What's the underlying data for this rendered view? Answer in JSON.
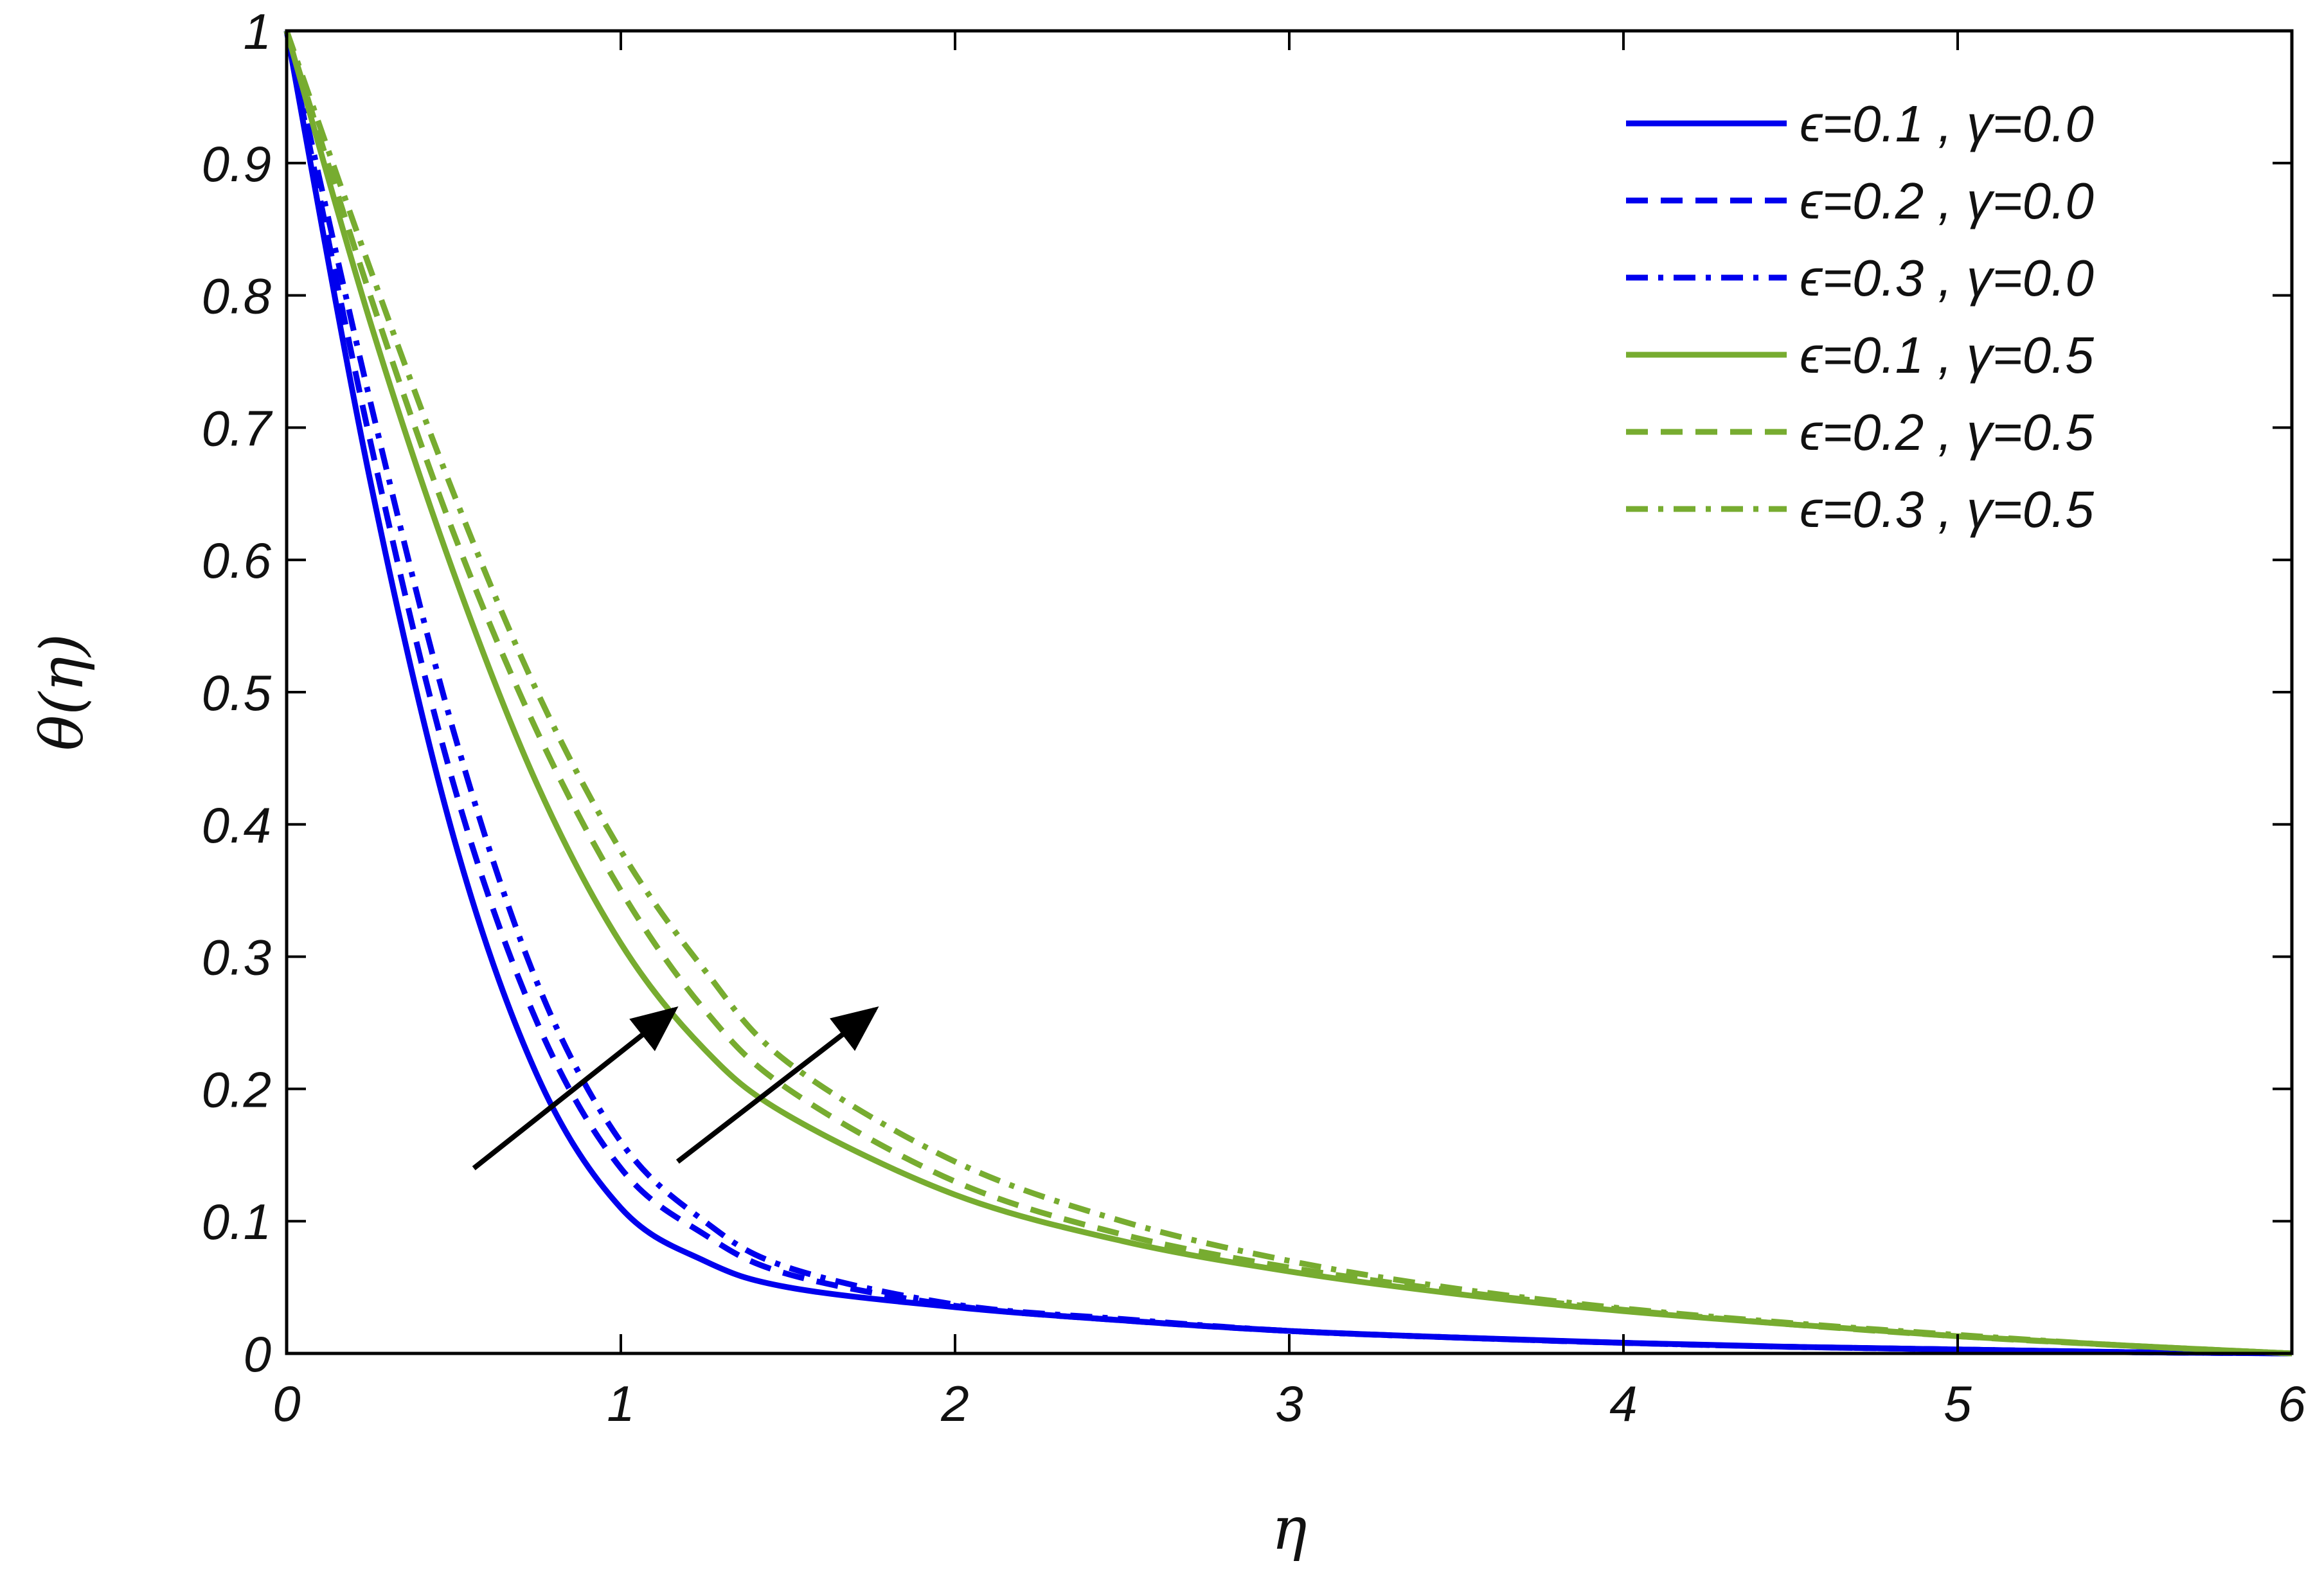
{
  "chart_data": {
    "type": "line",
    "title": "",
    "xlabel": "η",
    "ylabel": "θ(η)",
    "xlim": [
      0,
      6
    ],
    "ylim": [
      0,
      1
    ],
    "xticks": [
      "0",
      "1",
      "2",
      "3",
      "4",
      "5",
      "6"
    ],
    "yticks": [
      "0",
      "0.1",
      "0.2",
      "0.3",
      "0.4",
      "0.5",
      "0.6",
      "0.7",
      "0.8",
      "0.9",
      "1"
    ],
    "grid": false,
    "legend_position": "top-right",
    "x": [
      0,
      0.25,
      0.5,
      0.75,
      1.0,
      1.25,
      1.5,
      2.0,
      2.5,
      3.0,
      3.5,
      4.0,
      4.5,
      5.0,
      5.5,
      6.0
    ],
    "series": [
      {
        "name": "ϵ=0.1 , γ=0.0",
        "color": "#0000ee",
        "dash": "solid",
        "values": [
          1.0,
          0.66,
          0.39,
          0.21,
          0.11,
          0.07,
          0.05,
          0.035,
          0.025,
          0.017,
          0.012,
          0.008,
          0.005,
          0.003,
          0.001,
          0.0
        ]
      },
      {
        "name": "ϵ=0.2 , γ=0.0",
        "color": "#0000ee",
        "dash": "dashed",
        "values": [
          1.0,
          0.69,
          0.43,
          0.25,
          0.14,
          0.09,
          0.06,
          0.036,
          0.025,
          0.017,
          0.012,
          0.008,
          0.005,
          0.003,
          0.001,
          0.0
        ]
      },
      {
        "name": "ϵ=0.3 , γ=0.0",
        "color": "#0000ee",
        "dash": "dashdot",
        "values": [
          1.0,
          0.72,
          0.47,
          0.28,
          0.16,
          0.1,
          0.065,
          0.037,
          0.026,
          0.017,
          0.012,
          0.008,
          0.005,
          0.003,
          0.001,
          0.0
        ]
      },
      {
        "name": "ϵ=0.1 , γ=0.5",
        "color": "#77ac30",
        "dash": "solid",
        "values": [
          1.0,
          0.78,
          0.59,
          0.43,
          0.31,
          0.23,
          0.18,
          0.12,
          0.085,
          0.062,
          0.045,
          0.032,
          0.022,
          0.013,
          0.006,
          0.0
        ]
      },
      {
        "name": "ϵ=0.2 , γ=0.5",
        "color": "#77ac30",
        "dash": "dashed",
        "values": [
          1.0,
          0.8,
          0.62,
          0.47,
          0.35,
          0.26,
          0.2,
          0.13,
          0.09,
          0.065,
          0.047,
          0.033,
          0.022,
          0.013,
          0.006,
          0.0
        ]
      },
      {
        "name": "ϵ=0.3 , γ=0.5",
        "color": "#77ac30",
        "dash": "dashdot",
        "values": [
          1.0,
          0.82,
          0.65,
          0.5,
          0.38,
          0.29,
          0.22,
          0.145,
          0.1,
          0.07,
          0.049,
          0.034,
          0.023,
          0.014,
          0.006,
          0.0
        ]
      }
    ],
    "annotations": [
      {
        "type": "arrow",
        "from": [
          0.56,
          0.14
        ],
        "to": [
          1.16,
          0.26
        ],
        "color": "#000000"
      },
      {
        "type": "arrow",
        "from": [
          1.17,
          0.145
        ],
        "to": [
          1.76,
          0.26
        ],
        "color": "#000000"
      }
    ]
  }
}
